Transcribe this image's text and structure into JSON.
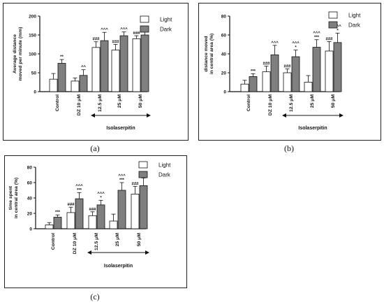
{
  "colors": {
    "light": "#ffffff",
    "dark": "#7f7f7f",
    "axis": "#111111",
    "border": "#222222"
  },
  "legend": {
    "light_label": "Light",
    "dark_label": "Dark"
  },
  "treatment_group_label": "Isolaserpitin",
  "panel_labels": [
    "(a)",
    "(b)",
    "(c)"
  ],
  "chart_data": [
    {
      "type": "bar",
      "panel": "(a)",
      "ylabel": "Average distance\nmoved per minute (mm)",
      "xlabel": "",
      "categories": [
        "Control",
        "DZ 10 μM",
        "12.5 μM",
        "25 μM",
        "50 μM"
      ],
      "ylim": [
        0,
        200
      ],
      "yticks": [
        0,
        50,
        100,
        150,
        200
      ],
      "legend_position": "top-right",
      "grid": false,
      "series": [
        {
          "name": "Light",
          "values": [
            33,
            28,
            117,
            110,
            140
          ],
          "errors": [
            15,
            8,
            15,
            15,
            8
          ],
          "annotations": [
            "",
            "",
            "###",
            "###",
            "###"
          ]
        },
        {
          "name": "Dark",
          "values": [
            75,
            43,
            135,
            148,
            150
          ],
          "errors": [
            10,
            15,
            22,
            10,
            10
          ],
          "annotations": [
            "**",
            "^^",
            "^^^",
            "^^^",
            "^^^"
          ]
        }
      ]
    },
    {
      "type": "bar",
      "panel": "(b)",
      "ylabel": "distance moved\nin central area (%)",
      "xlabel": "",
      "categories": [
        "Control",
        "DZ 10 μM",
        "12.5 μM",
        "25 μM",
        "50 μM"
      ],
      "ylim": [
        0,
        80
      ],
      "yticks": [
        0,
        20,
        40,
        60,
        80
      ],
      "legend_position": "top-right",
      "grid": false,
      "series": [
        {
          "name": "Light",
          "values": [
            8,
            21,
            20,
            10,
            43
          ],
          "errors": [
            4,
            6,
            4,
            7,
            10
          ],
          "annotations": [
            "",
            "###",
            "###",
            "",
            "###"
          ]
        },
        {
          "name": "Dark",
          "values": [
            16,
            39,
            37,
            47,
            52
          ],
          "errors": [
            3,
            10,
            7,
            8,
            10
          ],
          "annotations": [
            "***",
            "^^^",
            "^^^\n*",
            "^^^\n***",
            "^^^\n*"
          ]
        }
      ]
    },
    {
      "type": "bar",
      "panel": "(c)",
      "ylabel": "time spent\nin central area (%)",
      "xlabel": "",
      "categories": [
        "Control",
        "DZ 10 μM",
        "12.5 μM",
        "25 μM",
        "50 μM"
      ],
      "ylim": [
        0,
        80
      ],
      "yticks": [
        0,
        20,
        40,
        60,
        80
      ],
      "legend_position": "top-right",
      "grid": false,
      "series": [
        {
          "name": "Light",
          "values": [
            5,
            21,
            17,
            10,
            45
          ],
          "errors": [
            3,
            7,
            5,
            9,
            10
          ],
          "annotations": [
            "",
            "###",
            "###",
            "",
            "###"
          ]
        },
        {
          "name": "Dark",
          "values": [
            15,
            39,
            31,
            50,
            56
          ],
          "errors": [
            3,
            8,
            6,
            10,
            10
          ],
          "annotations": [
            "***",
            "^^^\n***",
            "^^^\n*",
            "^^^\n***",
            "^^^"
          ]
        }
      ]
    }
  ]
}
